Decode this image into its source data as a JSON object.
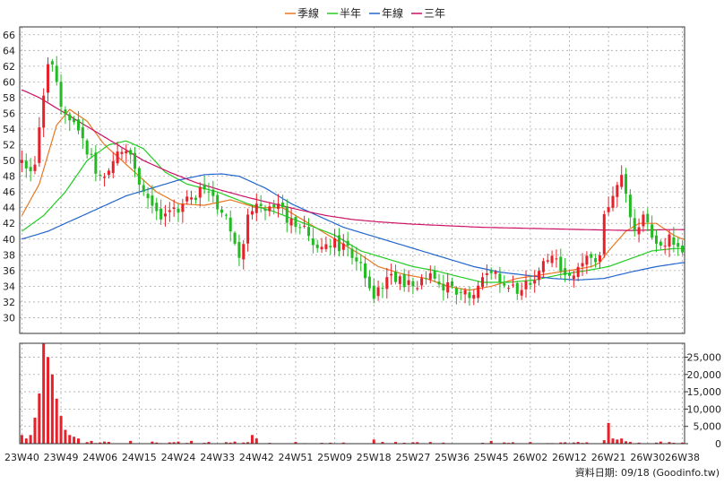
{
  "chart_data": {
    "type": "candlestick",
    "legend": [
      {
        "name": "季線",
        "color": "#e87722"
      },
      {
        "name": "半年",
        "color": "#22cc22"
      },
      {
        "name": "年線",
        "color": "#2266cc"
      },
      {
        "name": "三年",
        "color": "#cc1166"
      }
    ],
    "price_axis": {
      "ylim": [
        28,
        67
      ],
      "ticks": [
        30,
        32,
        34,
        36,
        38,
        40,
        42,
        44,
        46,
        48,
        50,
        52,
        54,
        56,
        58,
        60,
        62,
        64,
        66
      ],
      "position": "left",
      "grid": true
    },
    "volume_axis": {
      "ylim": [
        0,
        29000
      ],
      "ticks": [
        0,
        5000,
        10000,
        15000,
        20000,
        25000
      ],
      "tick_labels": [
        "0",
        "5,000",
        "10,000",
        "15,000",
        "20,000",
        "25,000"
      ],
      "position": "right"
    },
    "x_tick_labels": [
      "23W40",
      "23W49",
      "24W06",
      "24W15",
      "24W24",
      "24W33",
      "24W42",
      "24W51",
      "25W09",
      "25W18",
      "25W27",
      "25W36",
      "25W45",
      "26W02",
      "26W12",
      "26W21",
      "26W30",
      "26W38"
    ],
    "x_tick_index": [
      0,
      9,
      18,
      27,
      36,
      45,
      54,
      63,
      72,
      81,
      90,
      99,
      108,
      117,
      126,
      135,
      144,
      152
    ],
    "n_weeks": 153,
    "colors": {
      "up": "#e8202a",
      "down": "#22bb22",
      "volume": "#e8202a"
    },
    "price_keypoints": [
      [
        0,
        50
      ],
      [
        3,
        48
      ],
      [
        5,
        56
      ],
      [
        7,
        64
      ],
      [
        9,
        58
      ],
      [
        11,
        56
      ],
      [
        13,
        54
      ],
      [
        16,
        51
      ],
      [
        18,
        48
      ],
      [
        20,
        47.5
      ],
      [
        22,
        50
      ],
      [
        24,
        52
      ],
      [
        26,
        50
      ],
      [
        28,
        46
      ],
      [
        30,
        44
      ],
      [
        33,
        42.5
      ],
      [
        36,
        44
      ],
      [
        39,
        45
      ],
      [
        42,
        46
      ],
      [
        45,
        45
      ],
      [
        47,
        43
      ],
      [
        49,
        40
      ],
      [
        51,
        37.5
      ],
      [
        53,
        44
      ],
      [
        56,
        43.5
      ],
      [
        60,
        44
      ],
      [
        62,
        42.5
      ],
      [
        64,
        42
      ],
      [
        67,
        40.5
      ],
      [
        69,
        38.5
      ],
      [
        72,
        40
      ],
      [
        74,
        39
      ],
      [
        78,
        37.5
      ],
      [
        80,
        35
      ],
      [
        81,
        32
      ],
      [
        83,
        34
      ],
      [
        86,
        35.5
      ],
      [
        89,
        34
      ],
      [
        92,
        34.5
      ],
      [
        95,
        35.5
      ],
      [
        99,
        33.5
      ],
      [
        101,
        33
      ],
      [
        104,
        32.5
      ],
      [
        106,
        34
      ],
      [
        108,
        36
      ],
      [
        110,
        35.5
      ],
      [
        113,
        34
      ],
      [
        115,
        33.5
      ],
      [
        117,
        34
      ],
      [
        119,
        36
      ],
      [
        121,
        37
      ],
      [
        123,
        37.5
      ],
      [
        125,
        36
      ],
      [
        127,
        35
      ],
      [
        129,
        36
      ],
      [
        131,
        37.5
      ],
      [
        133,
        37
      ],
      [
        134,
        40
      ],
      [
        135,
        45
      ],
      [
        136,
        44
      ],
      [
        138,
        48
      ],
      [
        139,
        47
      ],
      [
        140,
        44
      ],
      [
        141,
        41
      ],
      [
        143,
        42
      ],
      [
        144,
        44
      ],
      [
        146,
        39
      ],
      [
        147,
        39
      ],
      [
        148,
        38
      ],
      [
        149,
        40.5
      ],
      [
        151,
        39.5
      ],
      [
        152,
        38.5
      ]
    ],
    "ma_keypoints": {
      "季線": [
        [
          0,
          43
        ],
        [
          4,
          47
        ],
        [
          8,
          54.5
        ],
        [
          11,
          56.5
        ],
        [
          15,
          55
        ],
        [
          19,
          52
        ],
        [
          23,
          50
        ],
        [
          27,
          48
        ],
        [
          31,
          46
        ],
        [
          36,
          44.5
        ],
        [
          42,
          44.3
        ],
        [
          48,
          45
        ],
        [
          54,
          44
        ],
        [
          60,
          44
        ],
        [
          66,
          42
        ],
        [
          72,
          40
        ],
        [
          78,
          38
        ],
        [
          82,
          36.5
        ],
        [
          88,
          35.5
        ],
        [
          93,
          35
        ],
        [
          98,
          34
        ],
        [
          103,
          33.5
        ],
        [
          108,
          34
        ],
        [
          114,
          35
        ],
        [
          120,
          35.5
        ],
        [
          126,
          36
        ],
        [
          131,
          36.5
        ],
        [
          133,
          37
        ],
        [
          135,
          38.5
        ],
        [
          139,
          41
        ],
        [
          142,
          42
        ],
        [
          146,
          42
        ],
        [
          150,
          40.5
        ],
        [
          152,
          40
        ]
      ],
      "半年": [
        [
          0,
          41
        ],
        [
          5,
          43
        ],
        [
          10,
          46
        ],
        [
          15,
          50
        ],
        [
          20,
          52
        ],
        [
          24,
          52.5
        ],
        [
          28,
          51.5
        ],
        [
          33,
          48.5
        ],
        [
          38,
          47
        ],
        [
          45,
          46
        ],
        [
          52,
          44.5
        ],
        [
          58,
          43.5
        ],
        [
          65,
          42
        ],
        [
          72,
          40.5
        ],
        [
          78,
          38.5
        ],
        [
          84,
          37.5
        ],
        [
          90,
          36.5
        ],
        [
          95,
          36
        ],
        [
          100,
          35.3
        ],
        [
          106,
          34.5
        ],
        [
          112,
          34.5
        ],
        [
          118,
          34.8
        ],
        [
          124,
          35.5
        ],
        [
          130,
          36
        ],
        [
          135,
          36.5
        ],
        [
          140,
          37.5
        ],
        [
          145,
          38.5
        ],
        [
          150,
          38.8
        ],
        [
          152,
          38.8
        ]
      ],
      "年線": [
        [
          0,
          40
        ],
        [
          6,
          41
        ],
        [
          12,
          42.5
        ],
        [
          18,
          44
        ],
        [
          24,
          45.5
        ],
        [
          30,
          46.5
        ],
        [
          36,
          47.5
        ],
        [
          42,
          48.2
        ],
        [
          46,
          48.3
        ],
        [
          50,
          48
        ],
        [
          56,
          46.5
        ],
        [
          62,
          44.5
        ],
        [
          68,
          43
        ],
        [
          74,
          41.5
        ],
        [
          80,
          40.5
        ],
        [
          86,
          39.5
        ],
        [
          92,
          38.5
        ],
        [
          98,
          37.5
        ],
        [
          104,
          36.5
        ],
        [
          110,
          35.8
        ],
        [
          116,
          35.4
        ],
        [
          122,
          35
        ],
        [
          128,
          34.8
        ],
        [
          134,
          35
        ],
        [
          140,
          35.8
        ],
        [
          146,
          36.5
        ],
        [
          152,
          37
        ]
      ],
      "三年": [
        [
          0,
          59
        ],
        [
          4,
          58
        ],
        [
          10,
          56
        ],
        [
          16,
          54
        ],
        [
          22,
          52
        ],
        [
          28,
          50
        ],
        [
          34,
          48.5
        ],
        [
          40,
          47.2
        ],
        [
          46,
          46.2
        ],
        [
          52,
          45.3
        ],
        [
          58,
          44.5
        ],
        [
          64,
          43.7
        ],
        [
          70,
          43
        ],
        [
          76,
          42.5
        ],
        [
          82,
          42.2
        ],
        [
          90,
          41.9
        ],
        [
          98,
          41.7
        ],
        [
          106,
          41.5
        ],
        [
          114,
          41.4
        ],
        [
          122,
          41.3
        ],
        [
          130,
          41.2
        ],
        [
          140,
          41.1
        ],
        [
          148,
          41.2
        ],
        [
          152,
          41.2
        ]
      ]
    },
    "volume_spikes": [
      [
        0,
        2500
      ],
      [
        1,
        1500
      ],
      [
        2,
        2500
      ],
      [
        3,
        7500
      ],
      [
        4,
        14500
      ],
      [
        5,
        29000
      ],
      [
        6,
        25000
      ],
      [
        7,
        20000
      ],
      [
        8,
        13000
      ],
      [
        9,
        8000
      ],
      [
        10,
        4000
      ],
      [
        11,
        2500
      ],
      [
        12,
        2000
      ],
      [
        13,
        1500
      ],
      [
        16,
        800
      ],
      [
        19,
        600
      ],
      [
        20,
        500
      ],
      [
        25,
        800
      ],
      [
        30,
        600
      ],
      [
        36,
        600
      ],
      [
        39,
        800
      ],
      [
        43,
        500
      ],
      [
        49,
        600
      ],
      [
        53,
        2500
      ],
      [
        54,
        1500
      ],
      [
        81,
        1200
      ],
      [
        108,
        800
      ],
      [
        134,
        1000
      ],
      [
        135,
        6000
      ],
      [
        136,
        1500
      ],
      [
        137,
        1200
      ],
      [
        138,
        1500
      ],
      [
        139,
        700
      ],
      [
        140,
        500
      ],
      [
        147,
        600
      ],
      [
        152,
        300
      ]
    ],
    "footer": "資料日期: 09/18 (Goodinfo.tw)"
  }
}
